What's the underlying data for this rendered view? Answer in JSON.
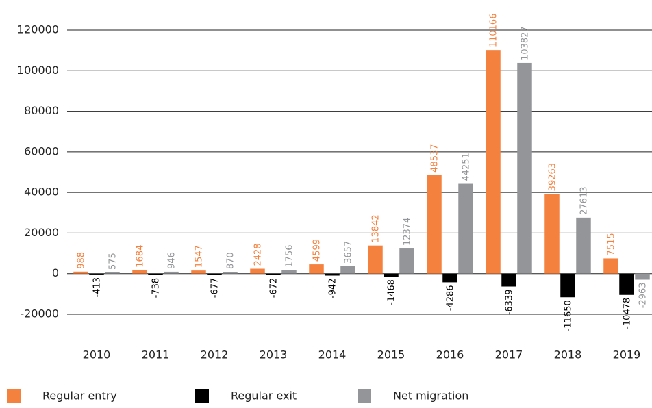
{
  "chart_data": {
    "type": "bar",
    "categories": [
      "2010",
      "2011",
      "2012",
      "2013",
      "2014",
      "2015",
      "2016",
      "2017",
      "2018",
      "2019"
    ],
    "series": [
      {
        "name": "Regular entry",
        "color": "#f5813f",
        "values": [
          988,
          1684,
          1547,
          2428,
          4599,
          13842,
          48537,
          110166,
          39263,
          7515
        ]
      },
      {
        "name": "Regular exit",
        "color": "#000000",
        "values": [
          -413,
          -738,
          -677,
          -672,
          -942,
          -1468,
          -4286,
          -6339,
          -11650,
          -10478
        ]
      },
      {
        "name": "Net migration",
        "color": "#939598",
        "values": [
          575,
          946,
          870,
          1756,
          3657,
          12374,
          44251,
          103827,
          27613,
          -2963
        ]
      }
    ],
    "ylim": [
      -20000,
      120000
    ],
    "yticks": [
      -20000,
      0,
      20000,
      40000,
      60000,
      80000,
      100000,
      120000
    ],
    "grid": true,
    "legend": "bottom"
  }
}
